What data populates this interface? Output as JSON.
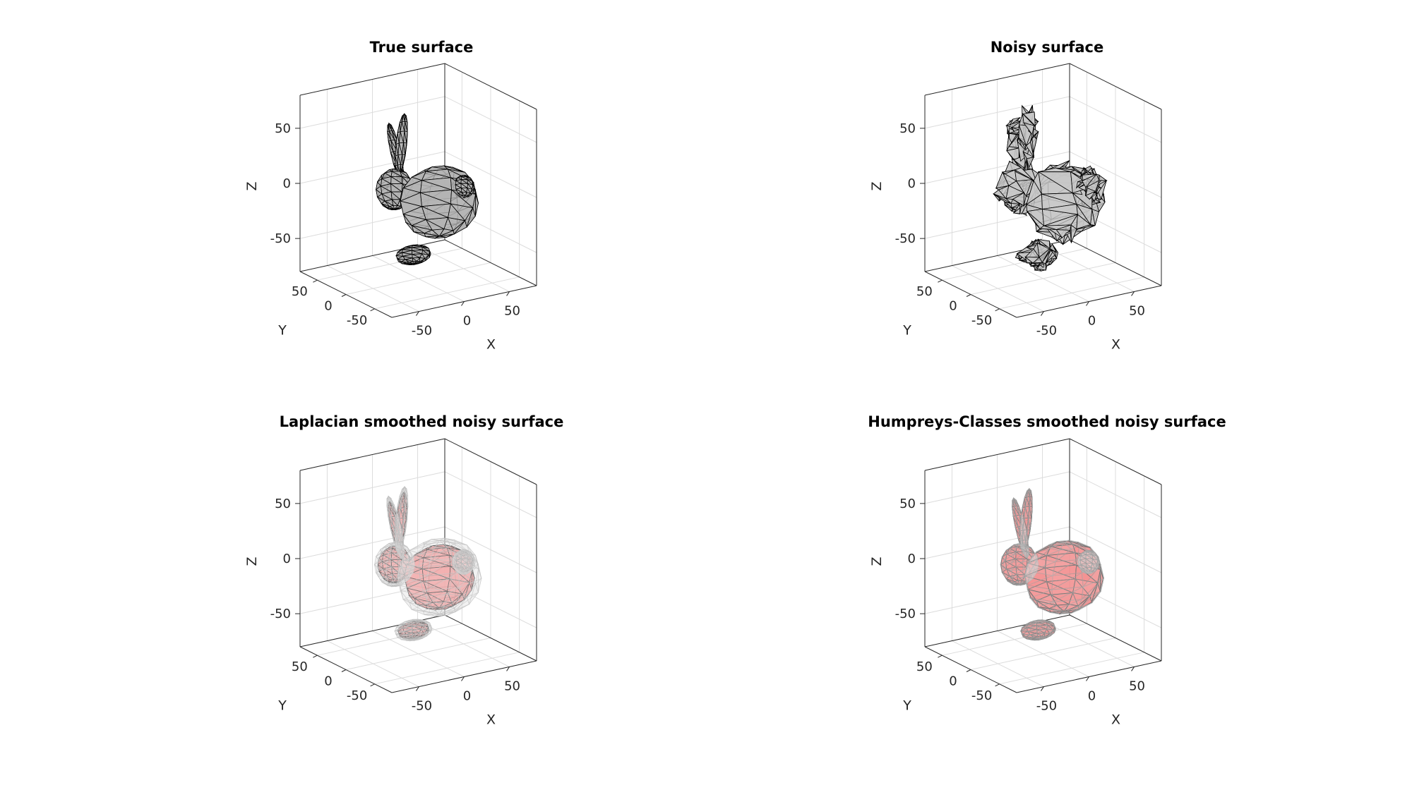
{
  "chart_data": [
    {
      "type": "mesh3d",
      "title": "True surface",
      "xlabel": "X",
      "ylabel": "Y",
      "zlabel": "Z",
      "xticks": [
        "-50",
        "0",
        "50"
      ],
      "yticks": [
        "-50",
        "0",
        "50"
      ],
      "zticks": [
        "-50",
        "0",
        "50"
      ],
      "grid": true,
      "surfaces": [
        {
          "face_color": "#b4b4b4",
          "edge_color": "#000000",
          "opacity": 1.0,
          "noise": 0.0,
          "scale": 1.0
        }
      ]
    },
    {
      "type": "mesh3d",
      "title": "Noisy surface",
      "xlabel": "X",
      "ylabel": "Y",
      "zlabel": "Z",
      "xticks": [
        "-50",
        "0",
        "50"
      ],
      "yticks": [
        "-50",
        "0",
        "50"
      ],
      "zticks": [
        "-50",
        "0",
        "50"
      ],
      "grid": true,
      "surfaces": [
        {
          "face_color": "#c8c8c8",
          "edge_color": "#000000",
          "opacity": 1.0,
          "noise": 1.0,
          "scale": 1.0
        }
      ]
    },
    {
      "type": "mesh3d",
      "title": "Laplacian smoothed noisy surface",
      "xlabel": "X",
      "ylabel": "Y",
      "zlabel": "Z",
      "xticks": [
        "-50",
        "0",
        "50"
      ],
      "yticks": [
        "-50",
        "0",
        "50"
      ],
      "zticks": [
        "-50",
        "0",
        "50"
      ],
      "grid": true,
      "surfaces": [
        {
          "face_color": "#ff8080",
          "edge_color": "#000000",
          "opacity": 0.9,
          "noise": 0.0,
          "scale": 0.9
        },
        {
          "face_color": "#e6e6e6",
          "edge_color": "#bdbdbd",
          "opacity": 0.35,
          "noise": 0.0,
          "scale": 1.08
        }
      ]
    },
    {
      "type": "mesh3d",
      "title": "Humpreys-Classes smoothed noisy surface",
      "xlabel": "X",
      "ylabel": "Y",
      "zlabel": "Z",
      "xticks": [
        "-50",
        "0",
        "50"
      ],
      "yticks": [
        "-50",
        "0",
        "50"
      ],
      "zticks": [
        "-50",
        "0",
        "50"
      ],
      "grid": true,
      "surfaces": [
        {
          "face_color": "#ff5a5a",
          "edge_color": "#000000",
          "opacity": 0.9,
          "noise": 0.0,
          "scale": 1.0
        },
        {
          "face_color": "#e6e6e6",
          "edge_color": "#9a9a9a",
          "opacity": 0.3,
          "noise": 0.0,
          "scale": 1.02
        }
      ]
    }
  ]
}
